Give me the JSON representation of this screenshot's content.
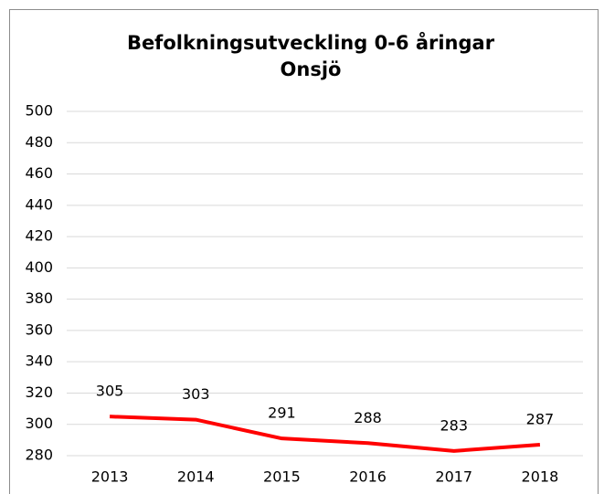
{
  "chart_data": {
    "type": "line",
    "title": [
      "Befolkningsutveckling 0-6 åringar",
      "Onsjö"
    ],
    "categories": [
      "2013",
      "2014",
      "2015",
      "2016",
      "2017",
      "2018"
    ],
    "series": [
      {
        "name": null,
        "color": "#ff0000",
        "values": [
          305,
          303,
          291,
          288,
          283,
          287
        ]
      }
    ],
    "ylim": [
      280,
      500
    ],
    "yticks": [
      280,
      300,
      320,
      340,
      360,
      380,
      400,
      420,
      440,
      460,
      480,
      500
    ],
    "grid": true,
    "data_labels": true
  }
}
